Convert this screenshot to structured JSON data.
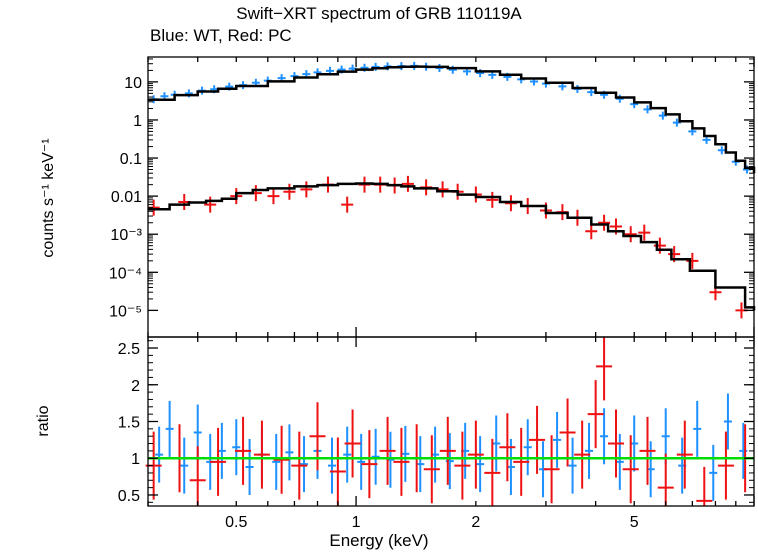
{
  "header": {
    "title": "Swift−XRT spectrum of GRB 110119A",
    "subtitle": "Blue: WT, Red: PC"
  },
  "colors": {
    "wt": "#1e90ff",
    "pc": "#ee1111",
    "model": "#000000",
    "unity": "#00dd00",
    "axis": "#000000"
  },
  "chart_data": [
    {
      "type": "scatter",
      "xlabel": "",
      "ylabel": "counts s⁻¹ keV⁻¹",
      "xscale": "log",
      "yscale": "log",
      "xlim": [
        0.3,
        10
      ],
      "ylim": [
        2e-06,
        45
      ],
      "y_tick_labels": [
        "10",
        "1",
        "0.1",
        "0.01",
        "10⁻³",
        "10⁻⁴",
        "10⁻⁵"
      ],
      "series": [
        {
          "name": "WT",
          "color": "#1e90ff",
          "x": [
            0.31,
            0.33,
            0.35,
            0.38,
            0.41,
            0.44,
            0.48,
            0.52,
            0.56,
            0.6,
            0.65,
            0.7,
            0.75,
            0.8,
            0.86,
            0.92,
            0.98,
            1.05,
            1.12,
            1.2,
            1.3,
            1.4,
            1.5,
            1.62,
            1.75,
            1.9,
            2.05,
            2.2,
            2.4,
            2.6,
            2.8,
            3.0,
            3.3,
            3.6,
            3.9,
            4.2,
            4.6,
            5.0,
            5.4,
            5.9,
            6.4,
            7.0,
            7.6,
            8.3,
            9.0,
            9.6
          ],
          "y": [
            3.5,
            4.2,
            4.6,
            5.0,
            5.9,
            6.4,
            7.5,
            8.2,
            9.5,
            10.8,
            12.5,
            14.2,
            16.0,
            17.8,
            19.5,
            21.0,
            22.2,
            23.5,
            24.8,
            25.5,
            26.0,
            26.3,
            25.0,
            23.2,
            20.8,
            18.9,
            17.0,
            15.3,
            13.5,
            11.6,
            10.2,
            9.0,
            7.6,
            6.5,
            5.4,
            4.6,
            3.6,
            2.6,
            1.9,
            1.3,
            0.85,
            0.5,
            0.3,
            0.16,
            0.08,
            0.05
          ]
        },
        {
          "name": "PC",
          "color": "#ee1111",
          "x": [
            0.31,
            0.37,
            0.43,
            0.5,
            0.56,
            0.62,
            0.68,
            0.75,
            0.85,
            0.95,
            1.05,
            1.15,
            1.25,
            1.35,
            1.5,
            1.65,
            1.8,
            2.0,
            2.2,
            2.45,
            2.7,
            3.0,
            3.3,
            3.6,
            3.9,
            4.2,
            4.5,
            4.9,
            5.3,
            5.8,
            6.3,
            7.0,
            8.0,
            9.3
          ],
          "y": [
            0.005,
            0.007,
            0.006,
            0.01,
            0.012,
            0.01,
            0.013,
            0.015,
            0.02,
            0.006,
            0.02,
            0.02,
            0.019,
            0.021,
            0.017,
            0.015,
            0.013,
            0.011,
            0.008,
            0.0065,
            0.0055,
            0.0042,
            0.0038,
            0.0027,
            0.0012,
            0.002,
            0.0016,
            0.001,
            0.0011,
            0.0005,
            0.0003,
            0.0002,
            3e-05,
            1e-05
          ]
        }
      ],
      "model_series": [
        {
          "name": "WT model",
          "color": "#000000",
          "x": [
            0.3,
            0.35,
            0.4,
            0.45,
            0.5,
            0.6,
            0.7,
            0.8,
            0.9,
            1.0,
            1.1,
            1.2,
            1.3,
            1.4,
            1.5,
            1.7,
            2.0,
            2.3,
            2.6,
            3.0,
            3.5,
            4.0,
            4.5,
            5.0,
            5.5,
            6.0,
            6.5,
            7.0,
            7.5,
            8.0,
            8.5,
            9.0,
            9.5,
            10.0
          ],
          "y": [
            3.4,
            4.5,
            5.6,
            6.6,
            7.8,
            10.3,
            13.0,
            15.8,
            18.6,
            21.0,
            22.8,
            24.2,
            24.9,
            25.2,
            24.7,
            23.0,
            18.8,
            15.4,
            12.3,
            9.5,
            6.9,
            5.2,
            3.9,
            2.9,
            2.05,
            1.4,
            0.93,
            0.6,
            0.38,
            0.23,
            0.14,
            0.085,
            0.055,
            0.04
          ]
        },
        {
          "name": "PC model",
          "color": "#000000",
          "x": [
            0.3,
            0.34,
            0.38,
            0.42,
            0.46,
            0.5,
            0.55,
            0.6,
            0.7,
            0.8,
            0.9,
            1.0,
            1.1,
            1.2,
            1.3,
            1.4,
            1.6,
            1.8,
            2.0,
            2.3,
            2.6,
            3.0,
            3.4,
            3.9,
            4.3,
            4.7,
            5.2,
            5.7,
            6.2,
            6.9,
            8.0,
            9.5,
            10.0
          ],
          "y": [
            0.0045,
            0.006,
            0.0068,
            0.0075,
            0.0085,
            0.012,
            0.0145,
            0.016,
            0.018,
            0.0195,
            0.021,
            0.0215,
            0.021,
            0.0195,
            0.018,
            0.016,
            0.0135,
            0.011,
            0.0095,
            0.007,
            0.0055,
            0.0036,
            0.0027,
            0.0018,
            0.0012,
            0.0009,
            0.00062,
            0.00039,
            0.00022,
            0.00011,
            4e-05,
            1.2e-05,
            1e-05
          ]
        }
      ]
    },
    {
      "type": "scatter",
      "xlabel": "Energy (keV)",
      "ylabel": "ratio",
      "xscale": "log",
      "yscale": "linear",
      "xlim": [
        0.3,
        10
      ],
      "ylim": [
        0.35,
        2.65
      ],
      "x_ticks": [
        0.5,
        1,
        2,
        5
      ],
      "x_tick_labels": [
        "0.5",
        "1",
        "2",
        "5"
      ],
      "y_ticks": [
        0.5,
        1,
        1.5,
        2,
        2.5
      ],
      "y_tick_labels": [
        "0.5",
        "1",
        "1.5",
        "2",
        "2.5"
      ],
      "reference_line": 1,
      "series": [
        {
          "name": "WT",
          "color": "#1e90ff",
          "x": [
            0.32,
            0.34,
            0.37,
            0.4,
            0.43,
            0.46,
            0.5,
            0.54,
            0.58,
            0.63,
            0.68,
            0.74,
            0.8,
            0.87,
            0.95,
            1.03,
            1.12,
            1.22,
            1.33,
            1.45,
            1.58,
            1.72,
            1.88,
            2.05,
            2.25,
            2.45,
            2.7,
            2.95,
            3.2,
            3.5,
            3.85,
            4.2,
            4.6,
            5.0,
            5.5,
            6.0,
            6.6,
            7.2,
            7.9,
            8.6,
            9.4
          ],
          "y": [
            1.05,
            1.4,
            0.9,
            1.35,
            0.95,
            1.1,
            1.15,
            0.88,
            1.05,
            0.95,
            1.08,
            0.92,
            1.1,
            0.9,
            1.05,
            0.95,
            1.02,
            0.98,
            1.06,
            0.92,
            1.05,
            0.96,
            1.1,
            0.92,
            1.2,
            0.88,
            1.15,
            0.85,
            1.25,
            0.9,
            1.1,
            1.3,
            0.95,
            1.2,
            0.85,
            1.3,
            0.9,
            1.4,
            0.8,
            1.5,
            1.1
          ]
        },
        {
          "name": "PC",
          "color": "#ee1111",
          "x": [
            0.31,
            0.36,
            0.4,
            0.45,
            0.52,
            0.58,
            0.65,
            0.72,
            0.8,
            0.9,
            0.98,
            1.08,
            1.2,
            1.3,
            1.42,
            1.55,
            1.7,
            1.85,
            2.0,
            2.2,
            2.4,
            2.6,
            2.85,
            3.1,
            3.4,
            3.7,
            4.0,
            4.2,
            4.5,
            4.9,
            5.4,
            6.0,
            6.7,
            7.5,
            8.5,
            9.5
          ],
          "y": [
            0.9,
            1.0,
            0.7,
            0.95,
            1.1,
            1.05,
            0.98,
            0.9,
            1.3,
            0.82,
            1.2,
            0.92,
            1.1,
            0.95,
            1.0,
            0.85,
            1.1,
            0.9,
            1.05,
            0.8,
            1.15,
            0.95,
            1.25,
            0.85,
            1.35,
            1.05,
            1.6,
            2.25,
            1.2,
            0.85,
            1.1,
            0.6,
            1.05,
            0.42,
            0.9,
            1.0
          ]
        }
      ]
    }
  ]
}
